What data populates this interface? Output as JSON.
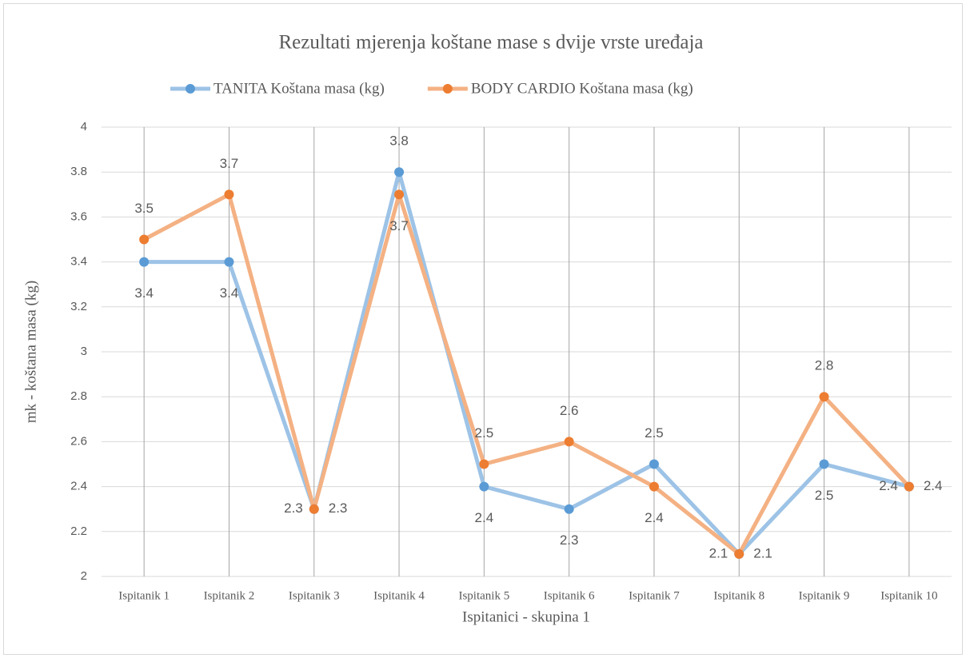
{
  "chart_data": {
    "type": "line",
    "title": "Rezultati mjerenja koštane mase s dvije vrste uređaja",
    "x_label": "Ispitanici - skupina 1",
    "y_label": "mk - koštana masa (kg)",
    "categories": [
      "Ispitanik 1",
      "Ispitanik 2",
      "Ispitanik 3",
      "Ispitanik 4",
      "Ispitanik 5",
      "Ispitanik 6",
      "Ispitanik 7",
      "Ispitanik 8",
      "Ispitanik 9",
      "Ispitanik 10"
    ],
    "series": [
      {
        "name": "TANITA Koštana masa (kg)",
        "color": "#5b9bd5",
        "line_color": "#9dc3e6",
        "values": [
          3.4,
          3.4,
          2.3,
          3.8,
          2.4,
          2.3,
          2.5,
          2.1,
          2.5,
          2.4
        ]
      },
      {
        "name": "BODY CARDIO Koštana masa (kg)",
        "color": "#ed7d31",
        "line_color": "#f4b183",
        "values": [
          3.5,
          3.7,
          2.3,
          3.7,
          2.5,
          2.6,
          2.4,
          2.1,
          2.8,
          2.4
        ]
      }
    ],
    "ylim": [
      2,
      4
    ],
    "yticks": [
      2,
      2.2,
      2.4,
      2.6,
      2.8,
      3,
      3.2,
      3.4,
      3.6,
      3.8,
      4
    ],
    "grid": true,
    "legend": "top"
  }
}
